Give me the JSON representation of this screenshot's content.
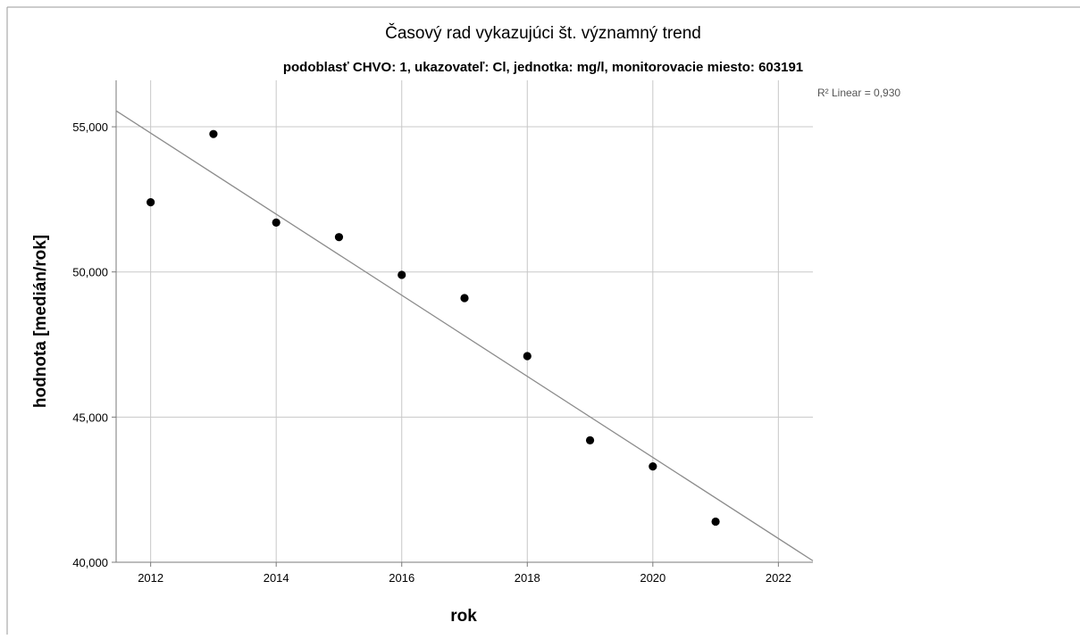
{
  "chart_data": {
    "type": "scatter",
    "title": "Časový rad vykazujúci št. významný trend",
    "subtitle": "podoblasť CHVO: 1, ukazovateľ: Cl, jednotka: mg/l, monitorovacie miesto: 603191",
    "xlabel": "rok",
    "ylabel": "hodnota [medián/rok]",
    "xlim": [
      2011.45,
      2022.55
    ],
    "ylim": [
      40000,
      56600
    ],
    "x_ticks": [
      2012,
      2014,
      2016,
      2018,
      2020,
      2022
    ],
    "x_tick_labels": [
      "2012",
      "2014",
      "2016",
      "2018",
      "2020",
      "2022"
    ],
    "y_ticks": [
      40000,
      45000,
      50000,
      55000
    ],
    "y_tick_labels": [
      "40,000",
      "45,000",
      "50,000",
      "55,000"
    ],
    "grid": true,
    "points": [
      {
        "x": 2012,
        "y": 52400
      },
      {
        "x": 2013,
        "y": 54750
      },
      {
        "x": 2014,
        "y": 51700
      },
      {
        "x": 2015,
        "y": 51200
      },
      {
        "x": 2016,
        "y": 49900
      },
      {
        "x": 2017,
        "y": 49100
      },
      {
        "x": 2018,
        "y": 47100
      },
      {
        "x": 2019,
        "y": 44200
      },
      {
        "x": 2020,
        "y": 43300
      },
      {
        "x": 2021,
        "y": 41400
      }
    ],
    "fit_line": {
      "type": "linear",
      "start": {
        "x": 2011.45,
        "y": 55550
      },
      "end": {
        "x": 2022.55,
        "y": 40050
      },
      "label": "R² Linear = 0,930"
    },
    "colors": {
      "points": "#000000",
      "fit_line": "#8c8c8c",
      "grid": "#c8c8c8",
      "axis": "#7a7a7a",
      "text": "#000000",
      "annotation": "#555555"
    }
  }
}
